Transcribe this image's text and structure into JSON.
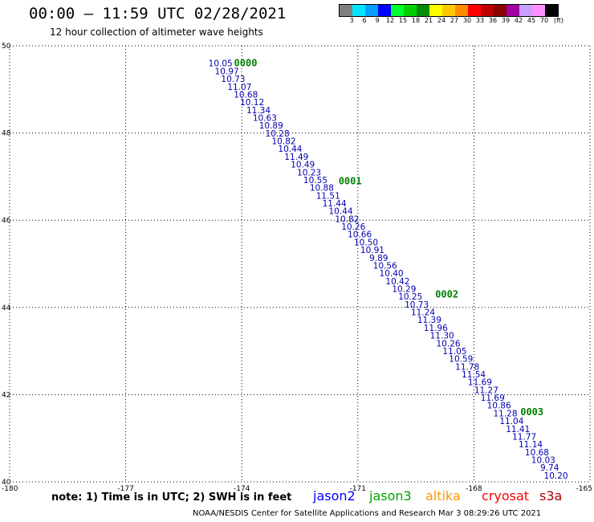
{
  "header": {
    "title": "00:00 – 11:59 UTC 02/28/2021",
    "subtitle": "12 hour collection of altimeter wave heights"
  },
  "legend": {
    "colors": [
      "#808080",
      "#00e5ff",
      "#00a0ff",
      "#0000ff",
      "#00ff30",
      "#00d000",
      "#008c00",
      "#ffff00",
      "#ffc800",
      "#ff8c00",
      "#ff0000",
      "#c00000",
      "#8b0000",
      "#a000a0",
      "#c8a0ff",
      "#ff90ff",
      "#000000"
    ],
    "labels": [
      "3",
      "6",
      "9",
      "12",
      "15",
      "18",
      "21",
      "24",
      "27",
      "30",
      "33",
      "36",
      "39",
      "42",
      "45",
      "70"
    ],
    "unit": "(ft)"
  },
  "chart_data": {
    "type": "scatter",
    "xlim": [
      -180,
      -165
    ],
    "ylim": [
      40,
      50
    ],
    "x_ticks": [
      "-180",
      "-177",
      "-174",
      "-171",
      "-168",
      "-165"
    ],
    "y_ticks": [
      "40",
      "42",
      "44",
      "46",
      "48",
      "50"
    ],
    "grid": true,
    "track_labels": [
      {
        "label": "0000",
        "lon": -174.2,
        "lat": 49.6
      },
      {
        "label": "0001",
        "lon": -171.5,
        "lat": 46.9
      },
      {
        "label": "0002",
        "lon": -169.0,
        "lat": 44.3
      },
      {
        "label": "0003",
        "lon": -166.8,
        "lat": 41.6
      }
    ],
    "values": [
      "10.05",
      "10.97",
      "10.73",
      "11.07",
      "10.68",
      "10.12",
      "11.34",
      "10.63",
      "10.89",
      "10.28",
      "10.82",
      "10.44",
      "11.49",
      "10.49",
      "10.23",
      "10.55",
      "10.88",
      "11.51",
      "11.44",
      "10.44",
      "10.82",
      "10.26",
      "10.66",
      "10.50",
      "10.91",
      "9.89",
      "10.56",
      "10.40",
      "10.42",
      "10.29",
      "10.25",
      "10.73",
      "11.24",
      "11.39",
      "11.96",
      "11.30",
      "10.26",
      "11.05",
      "10.59",
      "11.78",
      "11.54",
      "11.69",
      "11.27",
      "11.69",
      "10.86",
      "11.28",
      "11.04",
      "11.41",
      "11.77",
      "11.14",
      "10.68",
      "10.03",
      "9.74",
      "10.20"
    ],
    "track_start": {
      "lon": -174.55,
      "lat": 49.6
    },
    "track_end": {
      "lon": -165.88,
      "lat": 40.15
    }
  },
  "note": "note: 1) Time is in UTC; 2) SWH is in feet",
  "satellites": [
    {
      "name": "jason2",
      "color": "#0000ff"
    },
    {
      "name": "jason3",
      "color": "#00a000"
    },
    {
      "name": "altika",
      "color": "#ff9900"
    },
    {
      "name": "cryosat",
      "color": "#ff0000"
    },
    {
      "name": "s3a",
      "color": "#b00000"
    }
  ],
  "footer": "NOAA/NESDIS Center for Satellite Applications and Research    Mar  3 08:29:26 UTC 2021"
}
